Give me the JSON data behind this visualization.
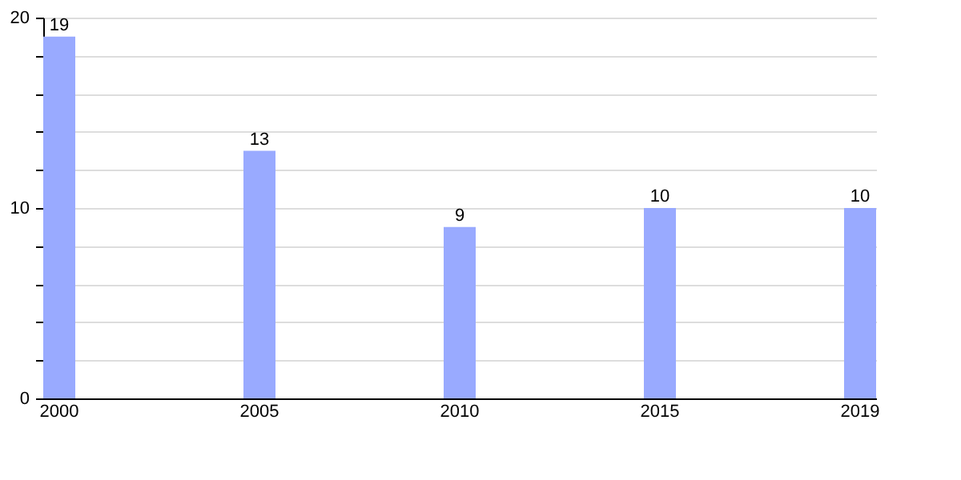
{
  "chart_data": {
    "type": "bar",
    "categories": [
      "2000",
      "2005",
      "2010",
      "2015",
      "2019"
    ],
    "values": [
      19,
      13,
      9,
      10,
      10
    ],
    "color": "#99aaff",
    "ylim": [
      0,
      20
    ],
    "yticks": [
      0,
      {
        "value": 2,
        "label": null
      },
      {
        "value": 4,
        "label": null
      },
      {
        "value": 6,
        "label": null
      },
      {
        "value": 8,
        "label": null
      },
      10,
      {
        "value": 12,
        "label": null
      },
      {
        "value": 14,
        "label": null
      },
      {
        "value": 16,
        "label": null
      },
      {
        "value": 18,
        "label": null
      },
      20
    ],
    "grid": "y",
    "data_labels": true
  }
}
